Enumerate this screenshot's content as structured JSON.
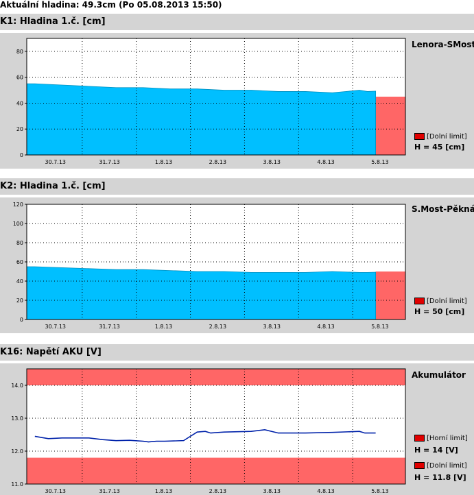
{
  "header": {
    "status": "Aktuální hladina: 49.3cm (Po 05.08.2013 15:50)"
  },
  "panels": [
    {
      "title": "K1: Hladina 1.č. [cm]",
      "station": "Lenora-SMost",
      "legend": [
        {
          "label": "[Dolní limit]",
          "value": "H = 45 [cm]"
        }
      ]
    },
    {
      "title": "K2: Hladina 1.č. [cm]",
      "station": "S.Most-Pěkná",
      "legend": [
        {
          "label": "[Dolní limit]",
          "value": "H = 50 [cm]"
        }
      ]
    },
    {
      "title": "K16: Napětí AKU [V]",
      "station": "Akumulátor",
      "legend": [
        {
          "label": "[Horní limit]",
          "value": "H = 14 [V]"
        },
        {
          "label": "[Dolní limit]",
          "value": "H = 11.8 [V]"
        }
      ]
    }
  ],
  "colors": {
    "fill": "#00bfff",
    "line": "#0022aa",
    "limit": "#ff6666",
    "panel_bg": "#d4d4d4"
  },
  "chart_data": [
    {
      "type": "area",
      "title": "K1: Hladina 1.č. [cm]",
      "x_ticks": [
        "30.7.13",
        "31.7.13",
        "1.8.13",
        "2.8.13",
        "3.8.13",
        "4.8.13",
        "5.8.13"
      ],
      "x": [
        0,
        0.5,
        1,
        1.5,
        2,
        2.5,
        3,
        3.5,
        4,
        4.5,
        5,
        5.5,
        6,
        6.15,
        6.3
      ],
      "values": [
        55,
        54,
        53,
        52,
        52,
        51,
        51,
        50,
        50,
        49,
        49,
        48,
        50,
        49,
        49.3
      ],
      "y_ticks": [
        0,
        20,
        40,
        60,
        80
      ],
      "ylim": [
        0,
        90
      ],
      "limits": [
        {
          "name": "Dolní limit",
          "value": 45
        }
      ]
    },
    {
      "type": "area",
      "title": "K2: Hladina 1.č. [cm]",
      "x_ticks": [
        "30.7.13",
        "31.7.13",
        "1.8.13",
        "2.8.13",
        "3.8.13",
        "4.8.13",
        "5.8.13"
      ],
      "x": [
        0,
        0.5,
        1,
        1.5,
        2,
        2.5,
        3,
        3.5,
        4,
        4.5,
        5,
        5.5,
        6,
        6.15,
        6.3
      ],
      "values": [
        55,
        54,
        53,
        52,
        52,
        51,
        50,
        50,
        49,
        49,
        49,
        50,
        49,
        49,
        49.3
      ],
      "y_ticks": [
        0,
        20,
        40,
        60,
        80,
        100,
        120
      ],
      "ylim": [
        0,
        120
      ],
      "limits": [
        {
          "name": "Dolní limit",
          "value": 50
        }
      ]
    },
    {
      "type": "line",
      "title": "K16: Napětí AKU [V]",
      "x_ticks": [
        "30.7.13",
        "31.7.13",
        "1.8.13",
        "2.8.13",
        "3.8.13",
        "4.8.13",
        "5.8.13"
      ],
      "x": [
        0,
        0.25,
        0.5,
        1,
        1.25,
        1.5,
        1.75,
        2,
        2.1,
        2.25,
        2.4,
        2.75,
        3,
        3.15,
        3.25,
        3.5,
        4,
        4.25,
        4.5,
        5,
        5.5,
        6,
        6.1,
        6.3
      ],
      "values": [
        12.45,
        12.38,
        12.4,
        12.4,
        12.35,
        12.32,
        12.33,
        12.3,
        12.28,
        12.3,
        12.3,
        12.32,
        12.58,
        12.6,
        12.55,
        12.58,
        12.6,
        12.65,
        12.55,
        12.55,
        12.57,
        12.6,
        12.55,
        12.55
      ],
      "y_ticks": [
        "11.0",
        "12.0",
        "13.0",
        "14.0"
      ],
      "ylim": [
        11.0,
        14.5
      ],
      "limits": [
        {
          "name": "Horní limit",
          "value": 14
        },
        {
          "name": "Dolní limit",
          "value": 11.8
        }
      ]
    }
  ]
}
